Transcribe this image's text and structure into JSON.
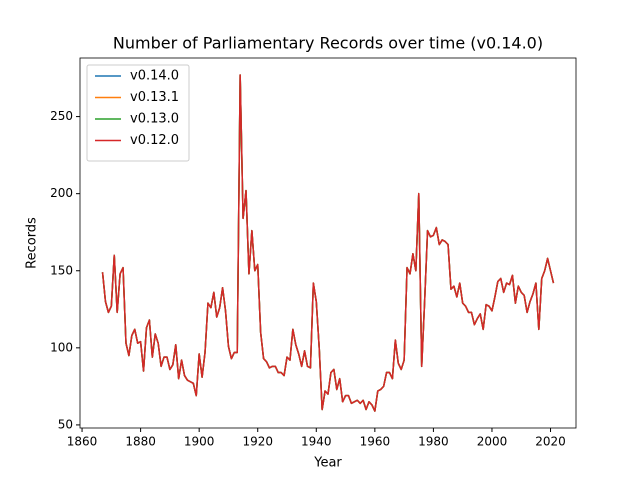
{
  "chart_data": {
    "type": "line",
    "title": "Number of Parliamentary Records over time (v0.14.0)",
    "x_label": "Year",
    "y_label": "Records",
    "x": [
      1867,
      1868,
      1869,
      1870,
      1871,
      1872,
      1873,
      1874,
      1875,
      1876,
      1877,
      1878,
      1879,
      1880,
      1881,
      1882,
      1883,
      1884,
      1885,
      1886,
      1887,
      1888,
      1889,
      1890,
      1891,
      1892,
      1893,
      1894,
      1895,
      1896,
      1897,
      1898,
      1899,
      1900,
      1901,
      1902,
      1903,
      1904,
      1905,
      1906,
      1907,
      1908,
      1909,
      1910,
      1911,
      1912,
      1913,
      1914,
      1915,
      1916,
      1917,
      1918,
      1919,
      1920,
      1921,
      1922,
      1923,
      1924,
      1925,
      1926,
      1927,
      1928,
      1929,
      1930,
      1931,
      1932,
      1933,
      1934,
      1935,
      1936,
      1937,
      1938,
      1939,
      1940,
      1941,
      1942,
      1943,
      1944,
      1945,
      1946,
      1947,
      1948,
      1949,
      1950,
      1951,
      1952,
      1953,
      1954,
      1955,
      1956,
      1957,
      1958,
      1959,
      1960,
      1961,
      1962,
      1963,
      1964,
      1965,
      1966,
      1967,
      1968,
      1969,
      1970,
      1971,
      1972,
      1973,
      1974,
      1975,
      1976,
      1977,
      1978,
      1979,
      1980,
      1981,
      1982,
      1983,
      1984,
      1985,
      1986,
      1987,
      1988,
      1989,
      1990,
      1991,
      1992,
      1993,
      1994,
      1995,
      1996,
      1997,
      1998,
      1999,
      2000,
      2001,
      2002,
      2003,
      2004,
      2005,
      2006,
      2007,
      2008,
      2009,
      2010,
      2011,
      2012,
      2013,
      2014,
      2015,
      2016,
      2017,
      2018,
      2019,
      2020,
      2021
    ],
    "series": [
      {
        "name": "v0.14.0",
        "color": "#1f77b4",
        "values": [
          149,
          130,
          123,
          127,
          160,
          123,
          148,
          152,
          103,
          95,
          108,
          112,
          103,
          104,
          85,
          113,
          118,
          94,
          109,
          103,
          88,
          94,
          94,
          86,
          89,
          102,
          80,
          92,
          82,
          79,
          78,
          77,
          69,
          96,
          81,
          97,
          129,
          126,
          136,
          120,
          126,
          139,
          124,
          101,
          93,
          97,
          97,
          277,
          184,
          202,
          148,
          176,
          150,
          154,
          110,
          93,
          91,
          87,
          88,
          88,
          84,
          84,
          82,
          94,
          92,
          112,
          102,
          96,
          88,
          98,
          88,
          87,
          142,
          130,
          100,
          60,
          72,
          70,
          84,
          86,
          73,
          80,
          65,
          69,
          69,
          64,
          65,
          66,
          64,
          66,
          60,
          65,
          63,
          59,
          72,
          73,
          75,
          84,
          84,
          80,
          105,
          90,
          86,
          92,
          152,
          148,
          161,
          150,
          200,
          88,
          130,
          176,
          172,
          173,
          178,
          167,
          170,
          169,
          167,
          138,
          140,
          133,
          142,
          129,
          127,
          123,
          123,
          115,
          119,
          122,
          112,
          128,
          127,
          124,
          133,
          143,
          145,
          136,
          142,
          141,
          147,
          129,
          140,
          136,
          134,
          123,
          130,
          135,
          142,
          112,
          145,
          150,
          158,
          150,
          142
        ]
      },
      {
        "name": "v0.13.1",
        "color": "#ff7f0e",
        "values": [
          149,
          130,
          123,
          127,
          160,
          123,
          148,
          152,
          103,
          95,
          108,
          112,
          103,
          104,
          85,
          113,
          118,
          94,
          109,
          103,
          88,
          94,
          94,
          86,
          89,
          102,
          80,
          92,
          82,
          79,
          78,
          77,
          69,
          96,
          81,
          97,
          129,
          126,
          136,
          120,
          126,
          139,
          124,
          101,
          93,
          97,
          97,
          277,
          184,
          202,
          148,
          176,
          150,
          154,
          110,
          93,
          91,
          87,
          88,
          88,
          84,
          84,
          82,
          94,
          92,
          112,
          102,
          96,
          88,
          98,
          88,
          87,
          142,
          130,
          100,
          60,
          72,
          70,
          84,
          86,
          73,
          80,
          65,
          69,
          69,
          64,
          65,
          66,
          64,
          66,
          60,
          65,
          63,
          59,
          72,
          73,
          75,
          84,
          84,
          80,
          105,
          90,
          86,
          92,
          152,
          148,
          161,
          150,
          200,
          88,
          130,
          176,
          172,
          173,
          178,
          167,
          170,
          169,
          167,
          138,
          140,
          133,
          142,
          129,
          127,
          123,
          123,
          115,
          119,
          122,
          112,
          128,
          127,
          124,
          133,
          143,
          145,
          136,
          142,
          141,
          147,
          129,
          140,
          136,
          134,
          123,
          130,
          135,
          142,
          112,
          145,
          150,
          158,
          150,
          142
        ]
      },
      {
        "name": "v0.13.0",
        "color": "#2ca02c",
        "values": [
          149,
          130,
          123,
          127,
          160,
          123,
          148,
          152,
          103,
          95,
          108,
          112,
          103,
          104,
          85,
          113,
          118,
          94,
          109,
          103,
          88,
          94,
          94,
          86,
          89,
          102,
          80,
          92,
          82,
          79,
          78,
          77,
          69,
          96,
          81,
          97,
          129,
          126,
          136,
          120,
          126,
          139,
          124,
          101,
          93,
          97,
          97,
          277,
          184,
          202,
          148,
          176,
          150,
          154,
          110,
          93,
          91,
          87,
          88,
          88,
          84,
          84,
          82,
          94,
          92,
          112,
          102,
          96,
          88,
          98,
          88,
          87,
          142,
          130,
          100,
          60,
          72,
          70,
          84,
          86,
          73,
          80,
          65,
          69,
          69,
          64,
          65,
          66,
          64,
          66,
          60,
          65,
          63,
          59,
          72,
          73,
          75,
          84,
          84,
          80,
          105,
          90,
          86,
          92,
          152,
          148,
          161,
          150,
          200,
          88,
          130,
          176,
          172,
          173,
          178,
          167,
          170,
          169,
          167,
          138,
          140,
          133,
          142,
          129,
          127,
          123,
          123,
          115,
          119,
          122,
          112,
          128,
          127,
          124,
          133,
          143,
          145,
          136,
          142,
          141,
          147,
          129,
          140,
          136,
          134,
          123,
          130,
          135,
          142,
          112,
          145,
          150,
          158,
          150,
          142
        ]
      },
      {
        "name": "v0.12.0",
        "color": "#d62728",
        "values": [
          149,
          130,
          123,
          127,
          160,
          123,
          148,
          152,
          103,
          95,
          108,
          112,
          103,
          104,
          85,
          113,
          118,
          94,
          109,
          103,
          88,
          94,
          94,
          86,
          89,
          102,
          80,
          92,
          82,
          79,
          78,
          77,
          69,
          96,
          81,
          97,
          129,
          126,
          136,
          120,
          126,
          139,
          124,
          101,
          93,
          97,
          97,
          277,
          184,
          202,
          148,
          176,
          150,
          154,
          110,
          93,
          91,
          87,
          88,
          88,
          84,
          84,
          82,
          94,
          92,
          112,
          102,
          96,
          88,
          98,
          88,
          87,
          142,
          130,
          100,
          60,
          72,
          70,
          84,
          86,
          73,
          80,
          65,
          69,
          69,
          64,
          65,
          66,
          64,
          66,
          60,
          65,
          63,
          59,
          72,
          73,
          75,
          84,
          84,
          80,
          105,
          90,
          86,
          92,
          152,
          148,
          161,
          150,
          200,
          88,
          130,
          176,
          172,
          173,
          178,
          167,
          170,
          169,
          167,
          138,
          140,
          133,
          142,
          129,
          127,
          123,
          123,
          115,
          119,
          122,
          112,
          128,
          127,
          124,
          133,
          143,
          145,
          136,
          142,
          141,
          147,
          129,
          140,
          136,
          134,
          123,
          130,
          135,
          142,
          112,
          145,
          150,
          158,
          150,
          142
        ]
      }
    ],
    "xlim": [
      1859.3,
      2028.7
    ],
    "ylim": [
      48,
      288
    ],
    "xticks": [
      1860,
      1880,
      1900,
      1920,
      1940,
      1960,
      1980,
      2000,
      2020
    ],
    "yticks": [
      50,
      100,
      150,
      200,
      250
    ],
    "legend": "upper left"
  }
}
